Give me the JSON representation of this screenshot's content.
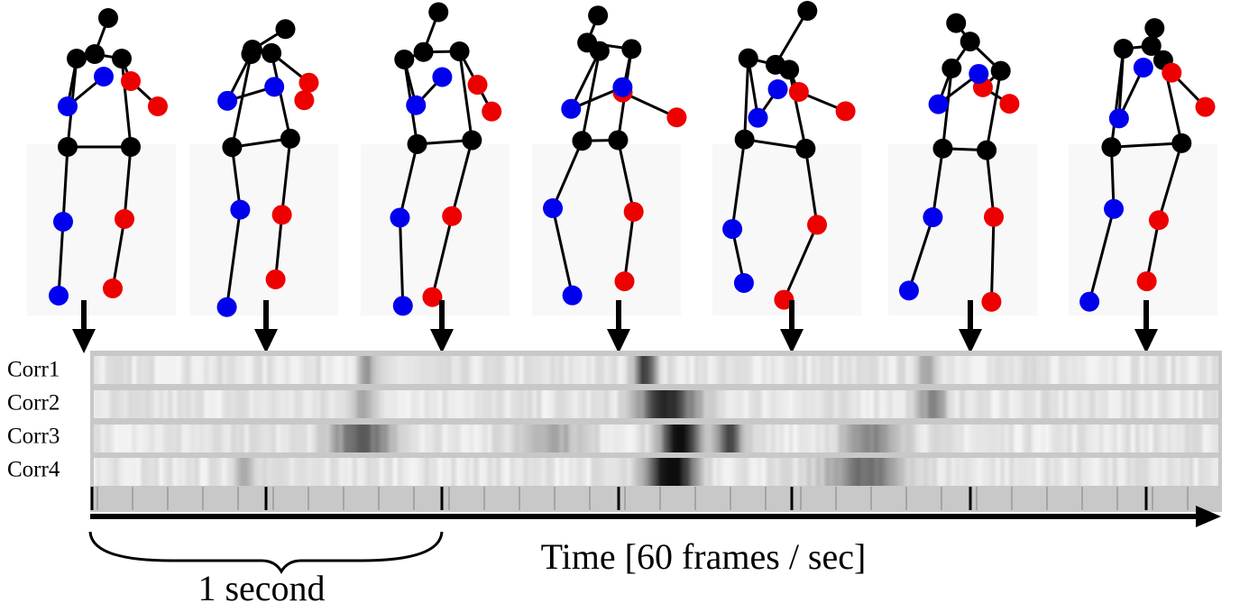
{
  "rows": [
    "Corr1",
    "Corr2",
    "Corr3",
    "Corr4"
  ],
  "time_axis": "Time [60 frames / sec]",
  "brace": "1 second"
}
